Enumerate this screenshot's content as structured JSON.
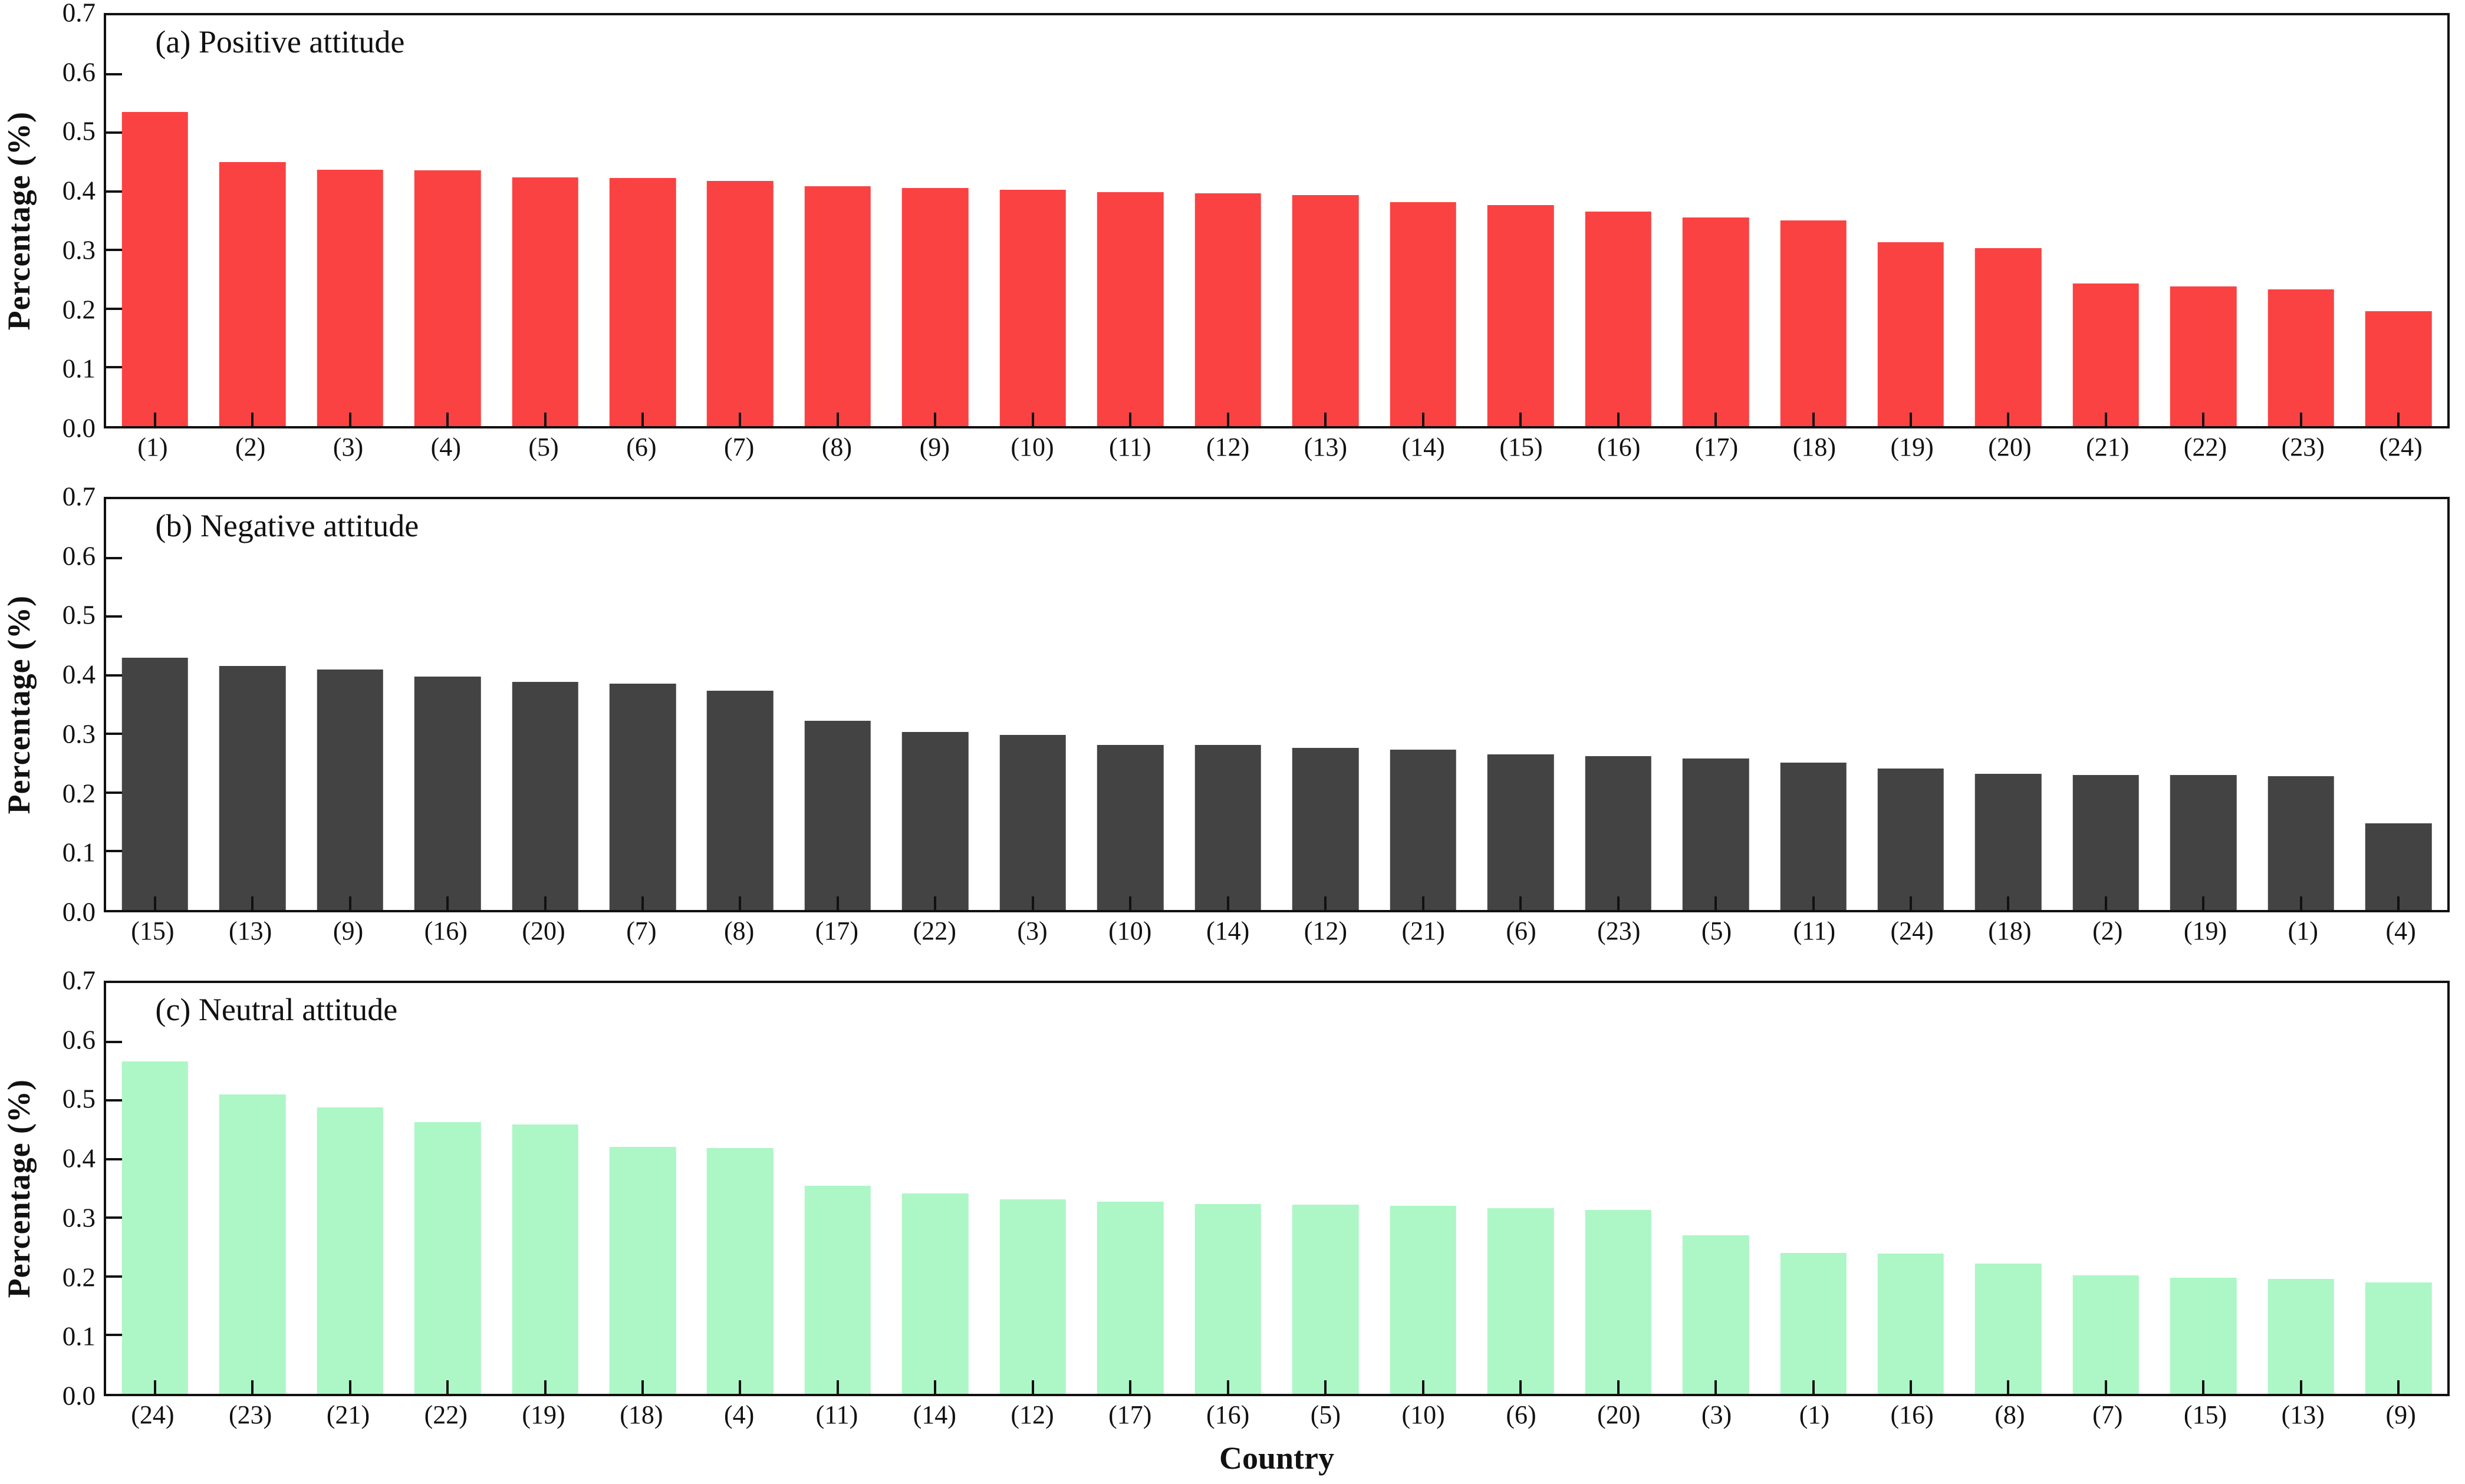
{
  "figure": {
    "x_axis_label": "Country",
    "y_axis_label": "Percentage (%)",
    "y_tick_labels": [
      "0.0",
      "0.1",
      "0.2",
      "0.3",
      "0.4",
      "0.5",
      "0.6",
      "0.7"
    ],
    "ylim": [
      0,
      0.7
    ],
    "frame_color": "#111111",
    "background_color": "#ffffff"
  },
  "chart_data": [
    {
      "type": "bar",
      "title": "(a) Positive attitude",
      "bar_color": "#fa4242",
      "xlabel": "Country",
      "ylabel": "Percentage (%)",
      "ylim": [
        0,
        0.7
      ],
      "grid": false,
      "categories": [
        "(1)",
        "(2)",
        "(3)",
        "(4)",
        "(5)",
        "(6)",
        "(7)",
        "(8)",
        "(9)",
        "(10)",
        "(11)",
        "(12)",
        "(13)",
        "(14)",
        "(15)",
        "(16)",
        "(17)",
        "(18)",
        "(19)",
        "(20)",
        "(21)",
        "(22)",
        "(23)",
        "(24)"
      ],
      "values": [
        0.535,
        0.45,
        0.437,
        0.436,
        0.424,
        0.423,
        0.418,
        0.409,
        0.406,
        0.403,
        0.399,
        0.397,
        0.394,
        0.382,
        0.377,
        0.366,
        0.356,
        0.351,
        0.313,
        0.303,
        0.243,
        0.238,
        0.233,
        0.196
      ]
    },
    {
      "type": "bar",
      "title": "(b) Negative attitude",
      "bar_color": "#434343",
      "xlabel": "Country",
      "ylabel": "Percentage (%)",
      "ylim": [
        0,
        0.7
      ],
      "grid": false,
      "categories": [
        "(15)",
        "(13)",
        "(9)",
        "(16)",
        "(20)",
        "(7)",
        "(8)",
        "(17)",
        "(22)",
        "(3)",
        "(10)",
        "(14)",
        "(12)",
        "(21)",
        "(6)",
        "(23)",
        "(5)",
        "(11)",
        "(24)",
        "(18)",
        "(2)",
        "(19)",
        "(1)",
        "(4)"
      ],
      "values": [
        0.43,
        0.416,
        0.41,
        0.398,
        0.389,
        0.386,
        0.374,
        0.322,
        0.303,
        0.298,
        0.281,
        0.281,
        0.276,
        0.273,
        0.265,
        0.262,
        0.258,
        0.251,
        0.241,
        0.232,
        0.23,
        0.23,
        0.228,
        0.148
      ]
    },
    {
      "type": "bar",
      "title": "(c) Neutral attitude",
      "bar_color": "#adf6c6",
      "xlabel": "Country",
      "ylabel": "Percentage (%)",
      "ylim": [
        0,
        0.7
      ],
      "grid": false,
      "categories": [
        "(24)",
        "(23)",
        "(21)",
        "(22)",
        "(19)",
        "(18)",
        "(4)",
        "(11)",
        "(14)",
        "(12)",
        "(17)",
        "(16)",
        "(5)",
        "(10)",
        "(6)",
        "(20)",
        "(3)",
        "(1)",
        "(16)",
        "(8)",
        "(7)",
        "(15)",
        "(13)",
        "(9)"
      ],
      "values": [
        0.566,
        0.51,
        0.488,
        0.463,
        0.459,
        0.421,
        0.419,
        0.355,
        0.341,
        0.331,
        0.327,
        0.323,
        0.322,
        0.32,
        0.316,
        0.313,
        0.27,
        0.24,
        0.239,
        0.222,
        0.202,
        0.198,
        0.196,
        0.19
      ]
    }
  ]
}
